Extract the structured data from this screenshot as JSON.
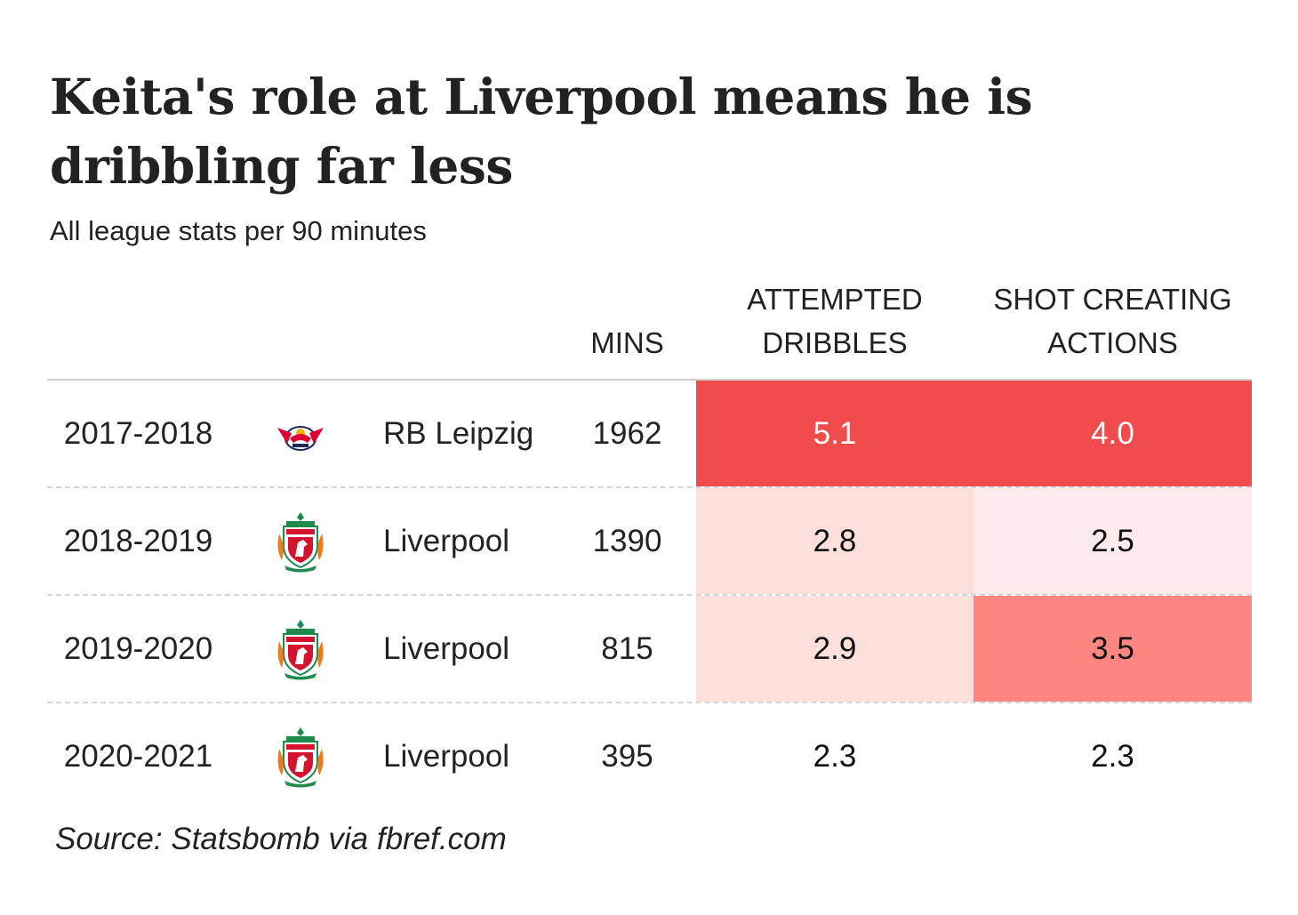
{
  "title": "Keita's role at Liverpool means he is dribbling far less",
  "subtitle": "All league stats per 90 minutes",
  "source": "Source: Statsbomb via fbref.com",
  "colors": {
    "cell_strong": "#f04c4d",
    "cell_medium": "#fe8680",
    "cell_light": "#fde0db",
    "cell_faint": "#fdebeb",
    "cell_none": "#ffffff"
  },
  "chart_data": {
    "type": "table",
    "columns": [
      "",
      "",
      "",
      "MINS",
      "ATTEMPTED\nDRIBBLES",
      "SHOT CREATING\nACTIONS"
    ],
    "rows": [
      {
        "season": "2017-2018",
        "logo": "rb-leipzig-crest-icon",
        "team": "RB Leipzig",
        "mins": "1962",
        "dribbles": "5.1",
        "sca": "4.0",
        "dribbles_color": "#f04c4d",
        "sca_color": "#f04c4d"
      },
      {
        "season": "2018-2019",
        "logo": "liverpool-crest-icon",
        "team": "Liverpool",
        "mins": "1390",
        "dribbles": "2.8",
        "sca": "2.5",
        "dribbles_color": "#fde0db",
        "sca_color": "#fdebeb"
      },
      {
        "season": "2019-2020",
        "logo": "liverpool-crest-icon",
        "team": "Liverpool",
        "mins": "815",
        "dribbles": "2.9",
        "sca": "3.5",
        "dribbles_color": "#fde0db",
        "sca_color": "#fe8680"
      },
      {
        "season": "2020-2021",
        "logo": "liverpool-crest-icon",
        "team": "Liverpool",
        "mins": "395",
        "dribbles": "2.3",
        "sca": "2.3",
        "dribbles_color": "#ffffff",
        "sca_color": "#ffffff"
      }
    ]
  }
}
